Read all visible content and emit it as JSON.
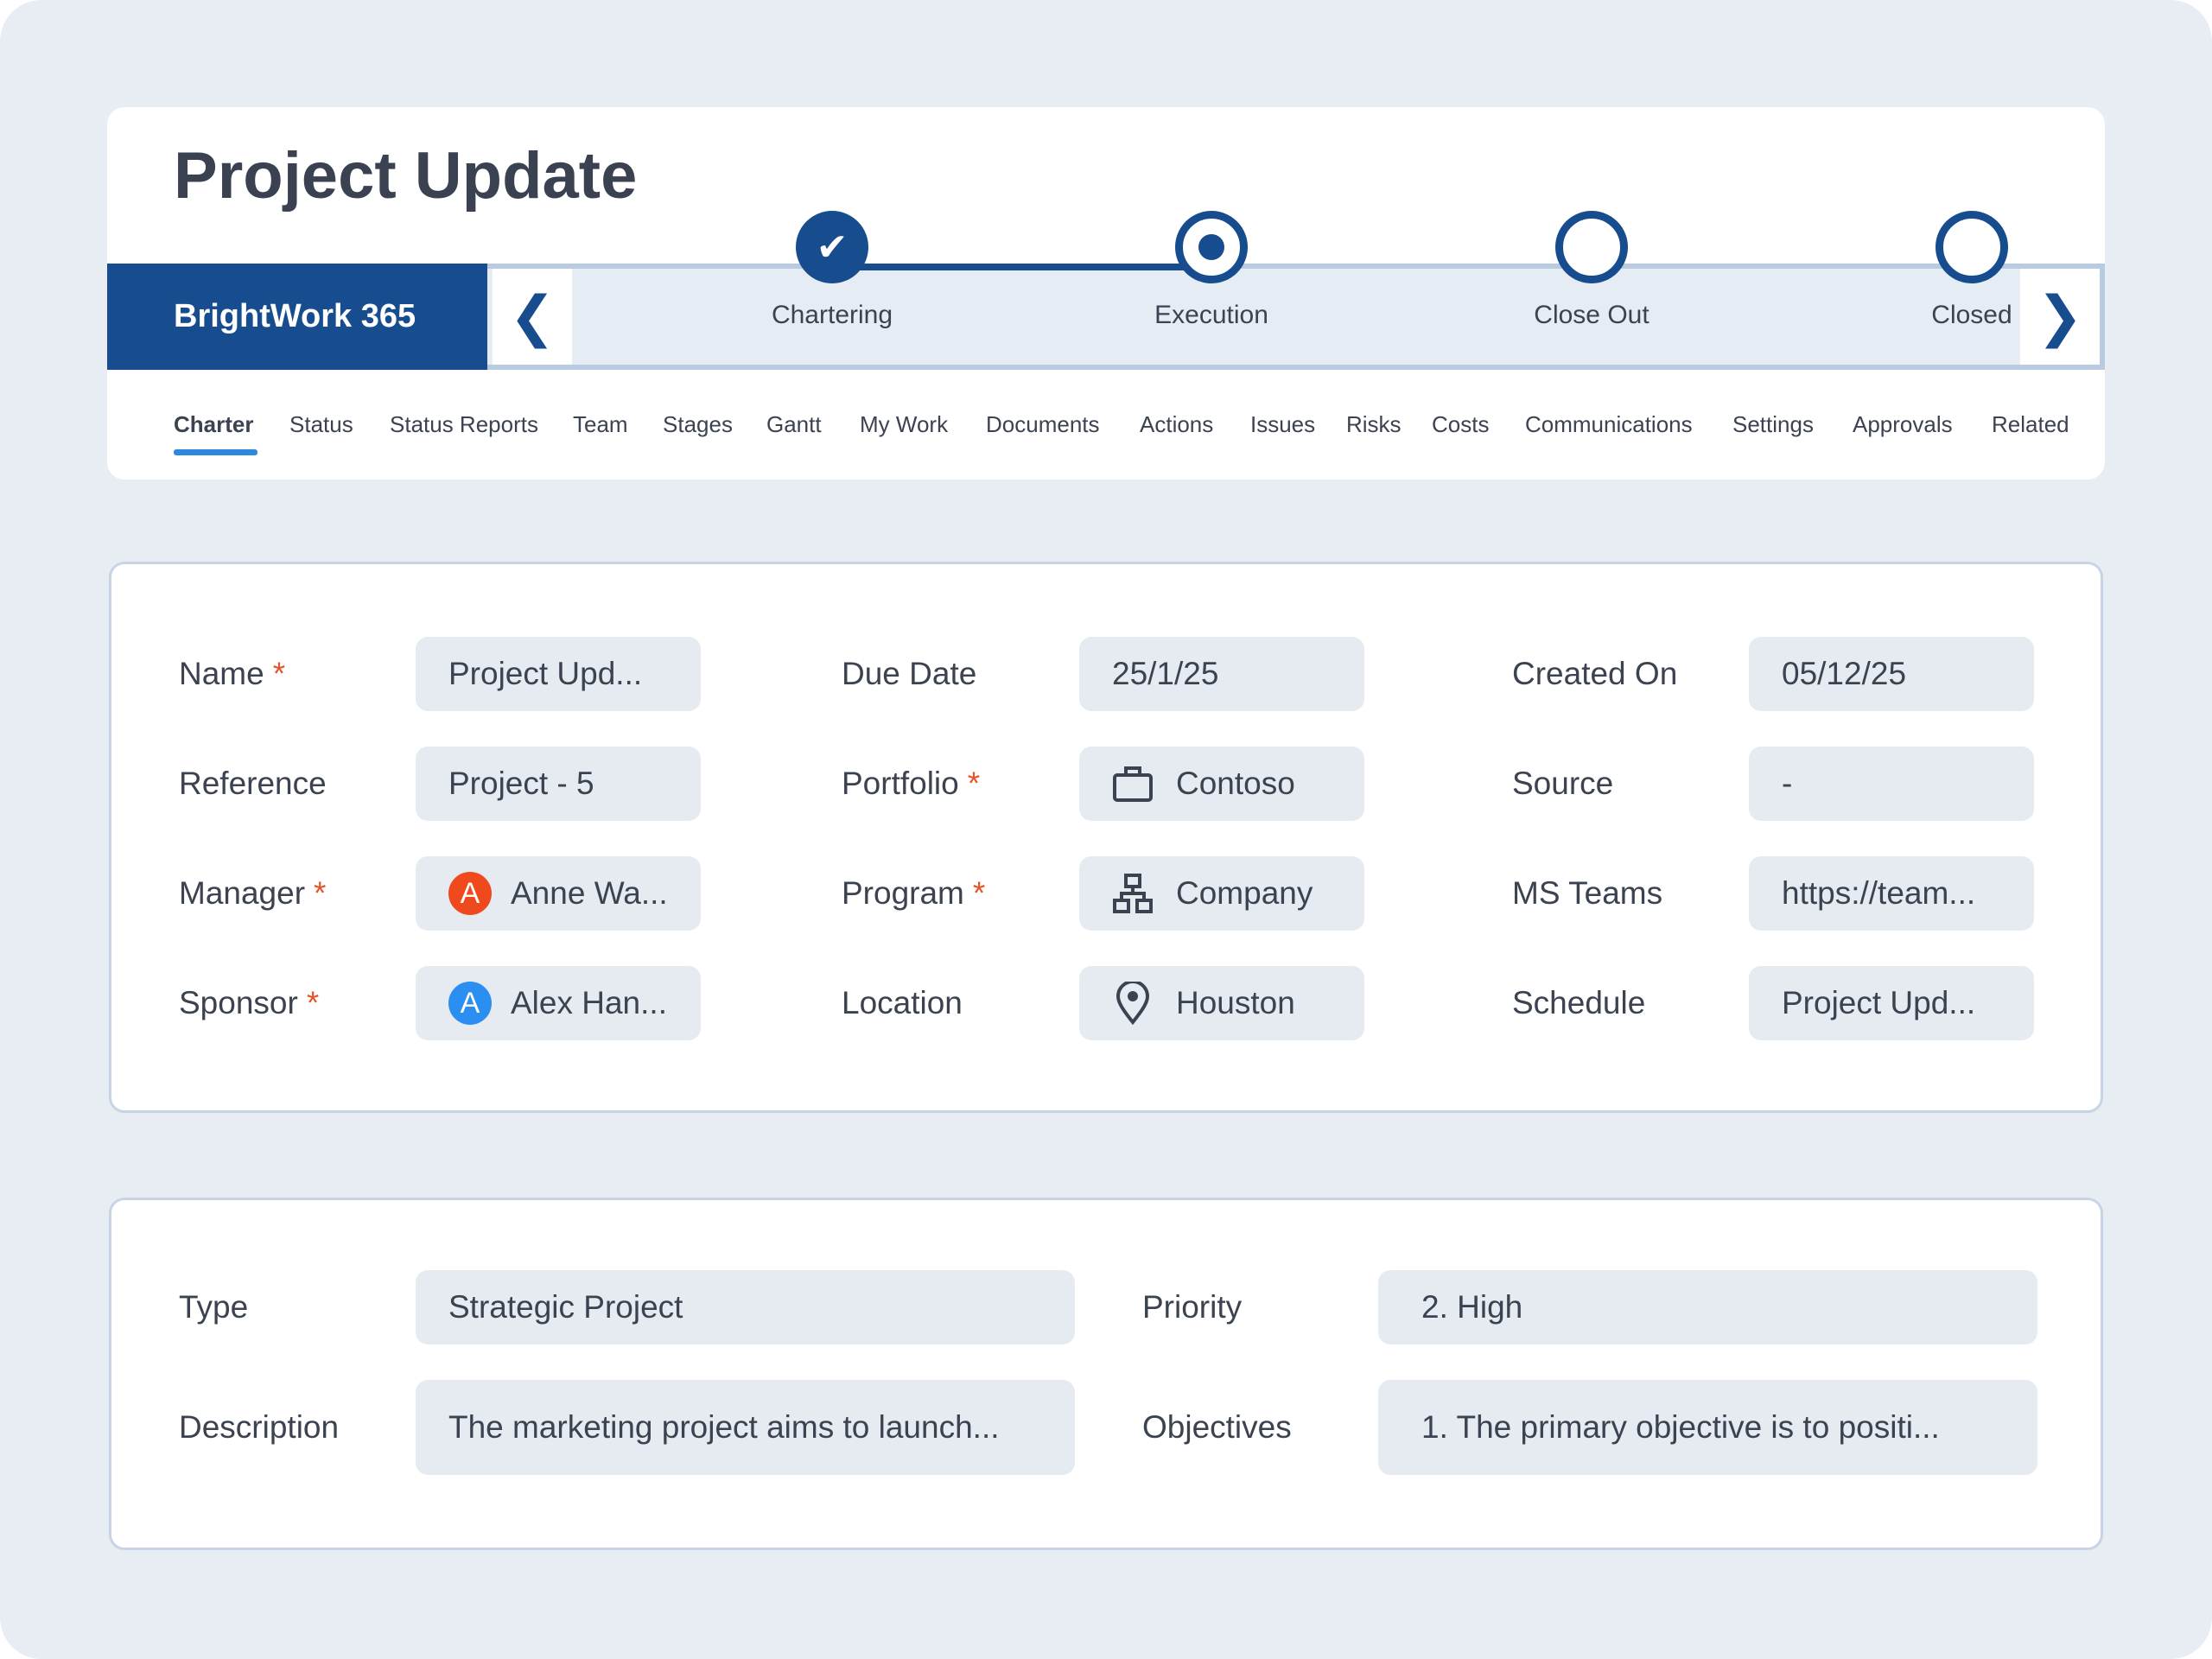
{
  "header": {
    "title": "Project Update",
    "brand": "BrightWork 365"
  },
  "stages": [
    {
      "label": "Chartering",
      "state": "complete"
    },
    {
      "label": "Execution",
      "state": "current"
    },
    {
      "label": "Close Out",
      "state": "pending"
    },
    {
      "label": "Closed",
      "state": "pending"
    }
  ],
  "tabs": [
    "Charter",
    "Status",
    "Status Reports",
    "Team",
    "Stages",
    "Gantt",
    "My Work",
    "Documents",
    "Actions",
    "Issues",
    "Risks",
    "Costs",
    "Communications",
    "Settings",
    "Approvals",
    "Related"
  ],
  "active_tab": "Charter",
  "details": {
    "name": {
      "label": "Name",
      "value": "Project Upd..."
    },
    "reference": {
      "label": "Reference",
      "value": "Project - 5"
    },
    "manager": {
      "label": "Manager",
      "value": "Anne Wa...",
      "initial": "A",
      "color": "#ef4a1e"
    },
    "sponsor": {
      "label": "Sponsor",
      "value": "Alex Han...",
      "initial": "A",
      "color": "#2a8ff0"
    },
    "due_date": {
      "label": "Due Date",
      "value": "25/1/25"
    },
    "portfolio": {
      "label": "Portfolio",
      "value": "Contoso",
      "icon": "briefcase-icon"
    },
    "program": {
      "label": "Program",
      "value": "Company",
      "icon": "hierarchy-icon"
    },
    "location": {
      "label": "Location",
      "value": "Houston",
      "icon": "map-pin-icon"
    },
    "created_on": {
      "label": "Created On",
      "value": "05/12/25"
    },
    "source": {
      "label": "Source",
      "value": "-"
    },
    "ms_teams": {
      "label": "MS Teams",
      "value": "https://team..."
    },
    "schedule": {
      "label": "Schedule",
      "value": "Project Upd..."
    },
    "required_marker": "*"
  },
  "classification": {
    "type": {
      "label": "Type",
      "value": "Strategic Project"
    },
    "priority": {
      "label": "Priority",
      "value": "2. High"
    },
    "description": {
      "label": "Description",
      "value": "The marketing project aims to launch..."
    },
    "objectives": {
      "label": "Objectives",
      "value": "1. The primary objective is to positi..."
    }
  },
  "colors": {
    "brand": "#174d8f",
    "accent": "#2b8ae0",
    "required": "#e5532b"
  }
}
